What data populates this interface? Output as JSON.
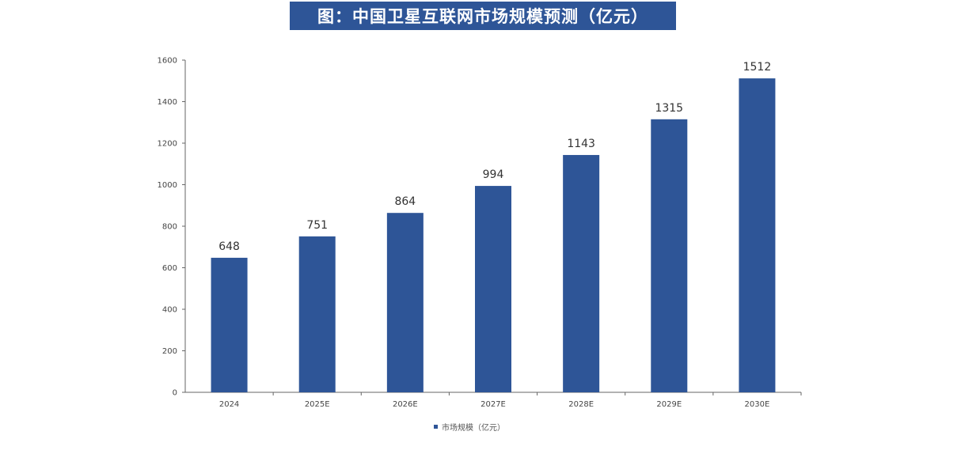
{
  "chart_data": {
    "type": "bar",
    "title": "图：中国卫星互联网市场规模预测（亿元）",
    "categories": [
      "2024",
      "2025E",
      "2026E",
      "2027E",
      "2028E",
      "2029E",
      "2030E"
    ],
    "series": [
      {
        "name": "市场规模（亿元）",
        "values": [
          648,
          751,
          864,
          994,
          1143,
          1315,
          1512
        ]
      }
    ],
    "ylim": [
      0,
      1600
    ],
    "yticks": [
      0,
      200,
      400,
      600,
      800,
      1000,
      1200,
      1400,
      1600
    ],
    "data_labels": true,
    "legend_position": "bottom",
    "grid": false,
    "colors": {
      "bar": "#2e5597",
      "title_bg": "#2e5597"
    }
  }
}
